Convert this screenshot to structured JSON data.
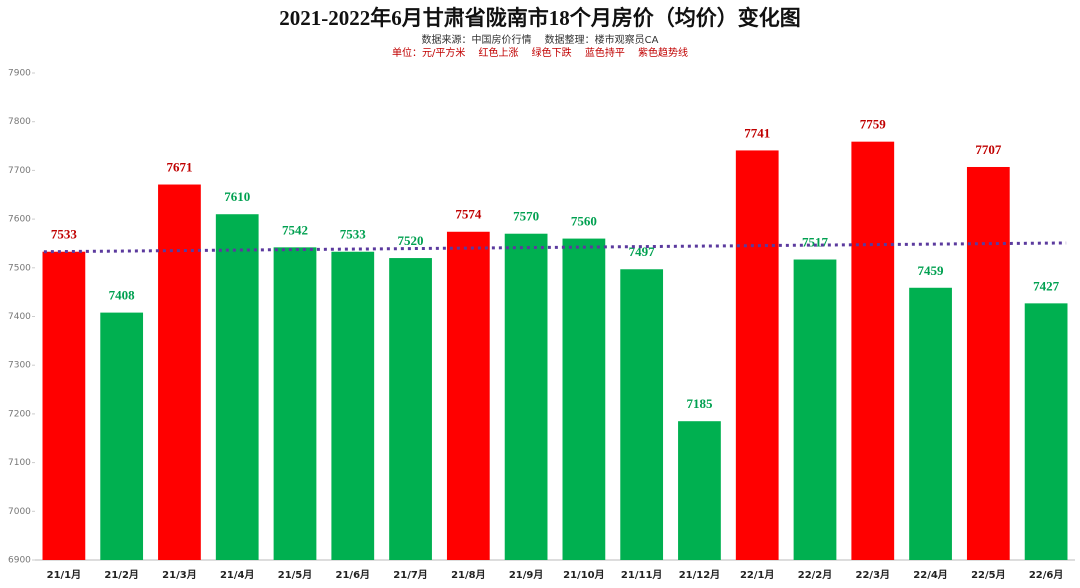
{
  "chart_data": {
    "type": "bar",
    "title": "2021-2022年6月甘肃省陇南市18个月房价（均价）变化图",
    "subtitle": "数据来源：中国房价行情　 数据整理：楼市观察员CA",
    "note": "单位：元/平方米　 红色上涨　 绿色下跌　 蓝色持平　 紫色趋势线",
    "categories": [
      "21/1月",
      "21/2月",
      "21/3月",
      "21/4月",
      "21/5月",
      "21/6月",
      "21/7月",
      "21/8月",
      "21/9月",
      "21/10月",
      "21/11月",
      "21/12月",
      "22/1月",
      "22/2月",
      "22/3月",
      "22/4月",
      "22/5月",
      "22/6月"
    ],
    "values": [
      7533,
      7408,
      7671,
      7610,
      7542,
      7533,
      7520,
      7574,
      7570,
      7560,
      7497,
      7185,
      7741,
      7517,
      7759,
      7459,
      7707,
      7427
    ],
    "colors": [
      "#ff0000",
      "#00b050",
      "#ff0000",
      "#00b050",
      "#00b050",
      "#00b050",
      "#00b050",
      "#ff0000",
      "#00b050",
      "#00b050",
      "#00b050",
      "#00b050",
      "#ff0000",
      "#00b050",
      "#ff0000",
      "#00b050",
      "#ff0000",
      "#00b050"
    ],
    "label_colors": {
      "#ff0000": "#c00000",
      "#00b050": "#00a050"
    },
    "trendline": {
      "color": "#5b3a9e",
      "start": 7533,
      "end": 7551
    },
    "ylim": [
      6900,
      7900
    ],
    "yticks": [
      6900,
      7000,
      7100,
      7200,
      7300,
      7400,
      7500,
      7600,
      7700,
      7800,
      7900
    ],
    "grid": false
  }
}
